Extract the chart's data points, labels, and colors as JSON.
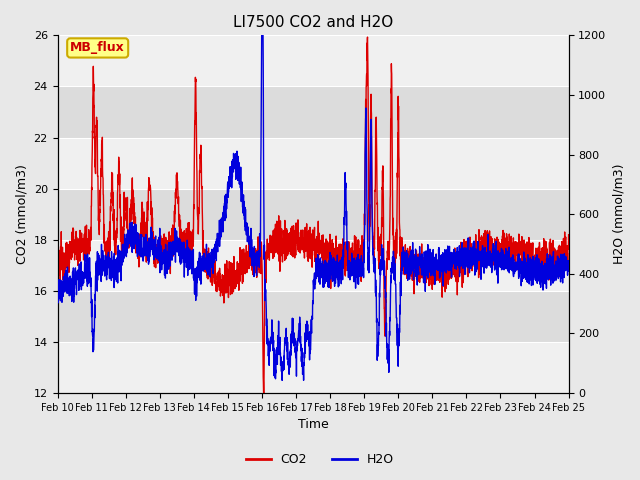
{
  "title": "LI7500 CO2 and H2O",
  "xlabel": "Time",
  "ylabel_left": "CO2 (mmol/m3)",
  "ylabel_right": "H2O (mmol/m3)",
  "ylim_left": [
    12,
    26
  ],
  "ylim_right": [
    0,
    1200
  ],
  "yticks_left": [
    12,
    14,
    16,
    18,
    20,
    22,
    24,
    26
  ],
  "yticks_right": [
    0,
    200,
    400,
    600,
    800,
    1000,
    1200
  ],
  "xtick_labels": [
    "Feb 10",
    "Feb 11",
    "Feb 12",
    "Feb 13",
    "Feb 14",
    "Feb 15",
    "Feb 16",
    "Feb 17",
    "Feb 18",
    "Feb 19",
    "Feb 20",
    "Feb 21",
    "Feb 22",
    "Feb 23",
    "Feb 24",
    "Feb 25"
  ],
  "co2_color": "#dd0000",
  "h2o_color": "#0000dd",
  "fig_facecolor": "#e8e8e8",
  "axes_facecolor": "#f0f0f0",
  "band_color_dark": "#dcdcdc",
  "band_color_light": "#f0f0f0",
  "annotation_text": "MB_flux",
  "annotation_bg": "#ffff88",
  "annotation_border": "#ccaa00",
  "annotation_text_color": "#cc0000",
  "legend_co2": "CO2",
  "legend_h2o": "H2O",
  "title_fontsize": 11,
  "label_fontsize": 9,
  "tick_fontsize": 8,
  "linewidth": 1.0
}
